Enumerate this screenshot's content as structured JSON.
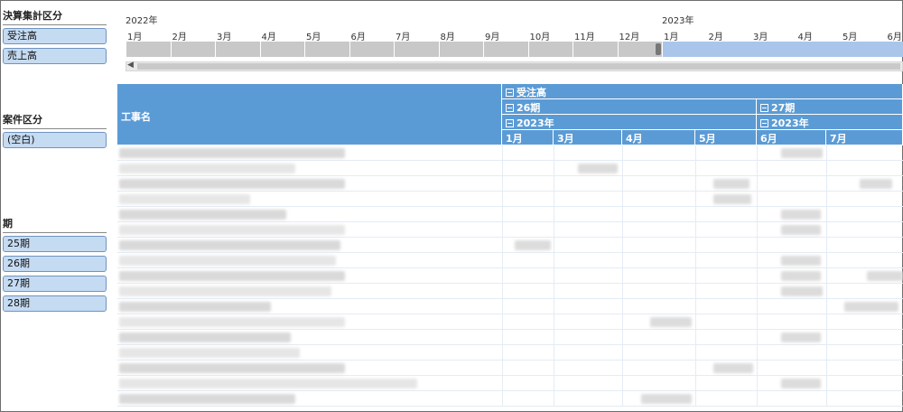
{
  "slicers": {
    "settlement": {
      "title": "決算集計区分",
      "items": [
        "受注高",
        "売上高"
      ]
    },
    "case": {
      "title": "案件区分",
      "items": [
        "(空白)"
      ]
    },
    "period": {
      "title": "期",
      "items": [
        "25期",
        "26期",
        "27期",
        "28期"
      ]
    }
  },
  "timeline": {
    "years": [
      "2022年",
      "2023年"
    ],
    "months": [
      "1月",
      "2月",
      "3月",
      "4月",
      "5月",
      "6月",
      "7月",
      "8月",
      "9月",
      "10月",
      "11月",
      "12月",
      "1月",
      "2月",
      "3月",
      "4月",
      "5月",
      "6月"
    ],
    "selected_from": "2023年1月",
    "scroll_left_icon": "triangle-left-icon"
  },
  "pivot": {
    "row_header": "工事名",
    "measure": "受注高",
    "periods": [
      "26期",
      "27期"
    ],
    "years": [
      "2023年",
      "2023年"
    ],
    "months": [
      "1月",
      "3月",
      "4月",
      "5月",
      "6月",
      "7月"
    ],
    "colors": {
      "header": "#5b9bd5",
      "grid": "#e3ecf5"
    }
  }
}
